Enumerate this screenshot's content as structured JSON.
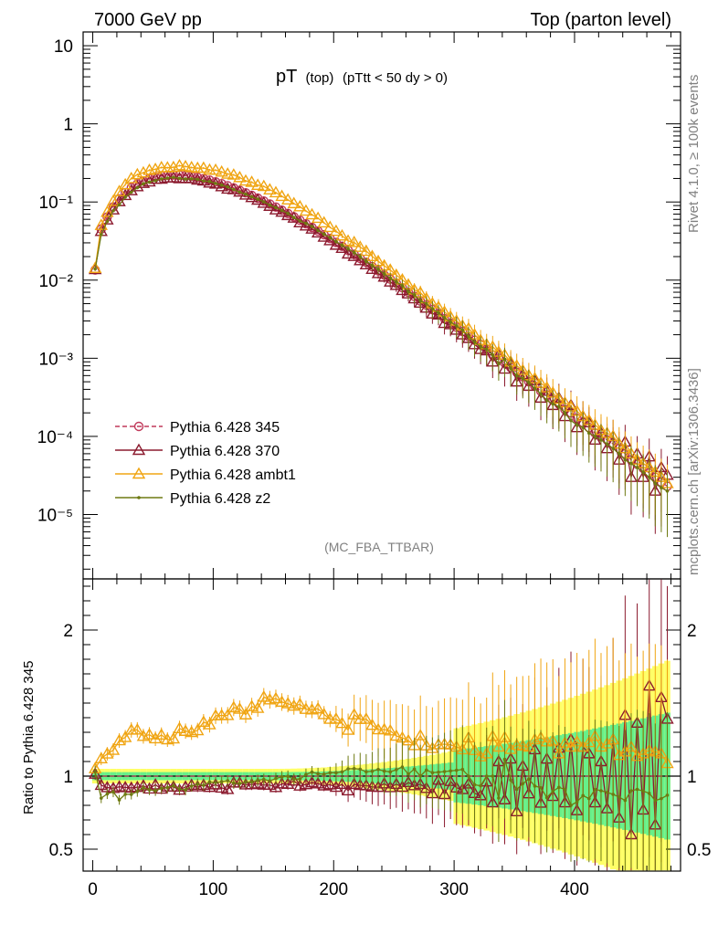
{
  "header": {
    "left": "7000 GeV pp",
    "right": "Top (parton level)"
  },
  "side_labels": {
    "rivet": "Rivet 4.1.0, ≥ 100k events",
    "mcplots": "mcplots.cern.ch [arXiv:1306.3436]"
  },
  "plot": {
    "title_main": "pT",
    "title_sub": "(top)",
    "title_cut": "(pTtt < 50 dy > 0)",
    "analysis": "(MC_FBA_TTBAR)",
    "ratio_ylabel": "Ratio to Pythia 6.428 345"
  },
  "colors": {
    "p345": "#c0395a",
    "p370": "#8b1a2e",
    "ambt1": "#f0a513",
    "z2": "#6e7a12",
    "band_yellow": "#ffff66",
    "band_green": "#66f08a"
  },
  "chart_data": {
    "type": "line",
    "x_axis": {
      "xlim": [
        -8,
        488
      ],
      "ticks": [
        0,
        100,
        200,
        300,
        400
      ],
      "tick_labels": [
        "0",
        "100",
        "200",
        "300",
        "400"
      ]
    },
    "main_y": {
      "scale": "log",
      "ylim": [
        1.5e-06,
        15
      ],
      "tick_values": [
        1e-05,
        0.0001,
        0.001,
        0.01,
        0.1,
        1,
        10
      ],
      "tick_labels": [
        "10⁻⁵",
        "10⁻⁴",
        "10⁻³",
        "10⁻²",
        "10⁻¹",
        "1",
        "10"
      ]
    },
    "ratio_y": {
      "ylim": [
        0.35,
        2.35
      ],
      "tick_values": [
        0.5,
        1,
        2
      ],
      "tick_labels": [
        "0.5",
        "1",
        "2"
      ]
    },
    "legend": [
      {
        "key": "p345",
        "label": "Pythia 6.428 345",
        "marker": "circle",
        "style": "dashed"
      },
      {
        "key": "p370",
        "label": "Pythia 6.428 370",
        "marker": "triangle",
        "style": "solid"
      },
      {
        "key": "ambt1",
        "label": "Pythia 6.428 ambt1",
        "marker": "triangle",
        "style": "solid"
      },
      {
        "key": "z2",
        "label": "Pythia 6.428 z2",
        "marker": "dot",
        "style": "solid"
      }
    ],
    "x": [
      2,
      7,
      12,
      17,
      22,
      27,
      32,
      37,
      42,
      47,
      52,
      57,
      62,
      67,
      72,
      77,
      82,
      87,
      92,
      97,
      102,
      107,
      112,
      117,
      122,
      127,
      132,
      137,
      142,
      147,
      152,
      157,
      162,
      167,
      172,
      177,
      182,
      187,
      192,
      197,
      202,
      207,
      212,
      217,
      222,
      227,
      232,
      237,
      242,
      247,
      252,
      257,
      262,
      267,
      272,
      277,
      282,
      287,
      292,
      297,
      302,
      307,
      312,
      317,
      322,
      327,
      332,
      337,
      342,
      347,
      352,
      357,
      362,
      367,
      372,
      377,
      382,
      387,
      392,
      397,
      402,
      407,
      412,
      417,
      422,
      427,
      432,
      437,
      442,
      447,
      452,
      457,
      462,
      467,
      472,
      477
    ],
    "series": [
      {
        "name": "Pythia 6.428 345",
        "values": [
          0.0135,
          0.045,
          0.0642,
          0.0867,
          0.1096,
          0.1317,
          0.1522,
          0.1704,
          0.186,
          0.1988,
          0.2086,
          0.2155,
          0.2196,
          0.2212,
          0.2203,
          0.2173,
          0.2125,
          0.2062,
          0.1986,
          0.1901,
          0.1809,
          0.1713,
          0.1613,
          0.1512,
          0.1411,
          0.1311,
          0.1214,
          0.112,
          0.1029,
          0.0943,
          0.0861,
          0.0785,
          0.0713,
          0.0646,
          0.0584,
          0.0526,
          0.0473,
          0.0425,
          0.0381,
          0.0341,
          0.0304,
          0.0271,
          0.0241,
          0.0214,
          0.019,
          0.0169,
          0.0149,
          0.0132,
          0.0116,
          0.0103,
          0.0091,
          0.008,
          0.007,
          0.0062,
          0.0054,
          0.0048,
          0.0042,
          0.0037,
          0.0032,
          0.0028,
          0.0025,
          0.0022,
          0.0019,
          0.0017,
          0.0015,
          0.0013,
          0.0011,
          0.001,
          0.00087,
          0.00076,
          0.00066,
          0.00058,
          0.0005,
          0.00044,
          0.00038,
          0.00034,
          0.00029,
          0.00026,
          0.00022,
          0.0002,
          0.00017,
          0.00015,
          0.00013,
          0.00011,
          0.0001,
          9e-05,
          8e-05,
          7e-05,
          6e-05,
          5e-05,
          4.4e-05,
          3.9e-05,
          3.4e-05,
          3e-05,
          2.6e-05,
          2.3e-05
        ]
      },
      {
        "name": "Pythia 6.428 370",
        "values": [
          0.0137,
          0.0422,
          0.0592,
          0.0795,
          0.1016,
          0.1215,
          0.1399,
          0.1574,
          0.1737,
          0.1815,
          0.1963,
          0.1966,
          0.2034,
          0.2049,
          0.1994,
          0.2013,
          0.1995,
          0.1913,
          0.1864,
          0.1757,
          0.1703,
          0.1575,
          0.1467,
          0.1443,
          0.1345,
          0.1234,
          0.1144,
          0.1061,
          0.0967,
          0.0885,
          0.0795,
          0.0744,
          0.0674,
          0.0625,
          0.0545,
          0.0496,
          0.0452,
          0.0403,
          0.0356,
          0.0321,
          0.0281,
          0.0256,
          0.0217,
          0.0202,
          0.0178,
          0.0158,
          0.0138,
          0.0122,
          0.011,
          0.0095,
          0.0086,
          0.0074,
          0.0067,
          0.0058,
          0.0051,
          0.0044,
          0.0037,
          0.0036,
          0.0028,
          0.0027,
          0.0023,
          0.002,
          0.0018,
          0.0015,
          0.0013,
          0.00125,
          0.0009,
          0.0011,
          0.00073,
          0.00085,
          0.0005,
          0.00062,
          0.00044,
          0.00052,
          0.00031,
          0.00038,
          0.00025,
          0.00031,
          0.00018,
          0.00025,
          0.00013,
          0.00018,
          0.00015,
          9e-05,
          0.00011,
          7e-05,
          0.0001,
          5e-05,
          8.5e-05,
          3e-05,
          6e-05,
          3e-05,
          5.5e-05,
          2e-05,
          4e-05,
          3.2e-05
        ]
      },
      {
        "name": "Pythia 6.428 ambt1",
        "values": [
          0.0142,
          0.0504,
          0.074,
          0.1021,
          0.1363,
          0.1666,
          0.2003,
          0.2244,
          0.2368,
          0.2552,
          0.2621,
          0.2763,
          0.2745,
          0.2778,
          0.2922,
          0.2842,
          0.2762,
          0.2706,
          0.2721,
          0.2571,
          0.2557,
          0.2424,
          0.2284,
          0.2222,
          0.2059,
          0.1862,
          0.1793,
          0.1641,
          0.1586,
          0.1436,
          0.1318,
          0.1183,
          0.1067,
          0.0956,
          0.0871,
          0.0767,
          0.0688,
          0.0621,
          0.0542,
          0.0474,
          0.0423,
          0.0369,
          0.0317,
          0.0304,
          0.0264,
          0.0235,
          0.0201,
          0.0174,
          0.0153,
          0.0135,
          0.0116,
          0.0101,
          0.0087,
          0.0075,
          0.0069,
          0.0058,
          0.005,
          0.0045,
          0.0039,
          0.0034,
          0.003,
          0.0026,
          0.0024,
          0.002,
          0.0017,
          0.0015,
          0.0014,
          0.0012,
          0.0011,
          0.0009,
          0.0008,
          0.0007,
          0.0006,
          0.00055,
          0.00048,
          0.00042,
          0.00036,
          0.0003,
          0.00027,
          0.00024,
          0.00021,
          0.00018,
          0.00016,
          0.00014,
          0.00012,
          0.00011,
          0.0001,
          8e-05,
          7e-05,
          6e-05,
          5e-05,
          4.5e-05,
          4e-05,
          3.5e-05,
          3e-05,
          2.5e-05
        ]
      },
      {
        "name": "Pythia 6.428 z2",
        "values": [
          0.0139,
          0.0382,
          0.0564,
          0.0773,
          0.0918,
          0.1153,
          0.1332,
          0.1524,
          0.1712,
          0.1802,
          0.1878,
          0.1975,
          0.2023,
          0.2067,
          0.2009,
          0.1967,
          0.1979,
          0.1949,
          0.1861,
          0.1826,
          0.1728,
          0.1648,
          0.1563,
          0.1439,
          0.1339,
          0.1257,
          0.1166,
          0.1088,
          0.1006,
          0.0912,
          0.0847,
          0.0781,
          0.0712,
          0.0633,
          0.0572,
          0.0532,
          0.0486,
          0.0432,
          0.0386,
          0.0349,
          0.0311,
          0.0279,
          0.0253,
          0.0225,
          0.0199,
          0.0174,
          0.0154,
          0.0138,
          0.012,
          0.0106,
          0.0095,
          0.0085,
          0.0071,
          0.0065,
          0.0054,
          0.005,
          0.0043,
          0.0038,
          0.0033,
          0.0029,
          0.0026,
          0.0023,
          0.0019,
          0.0016,
          0.0014,
          0.0013,
          0.0011,
          0.00085,
          0.00097,
          0.00074,
          0.0006,
          0.00055,
          0.00049,
          0.00041,
          0.00035,
          0.00029,
          0.00026,
          0.00024,
          0.0002,
          0.00016,
          0.00014,
          0.00013,
          0.00011,
          0.0001,
          9e-05,
          8e-05,
          7e-05,
          6e-05,
          5e-05,
          4.5e-05,
          4e-05,
          3.5e-05,
          3e-05,
          2.5e-05,
          2.2e-05,
          2e-05
        ]
      }
    ]
  }
}
